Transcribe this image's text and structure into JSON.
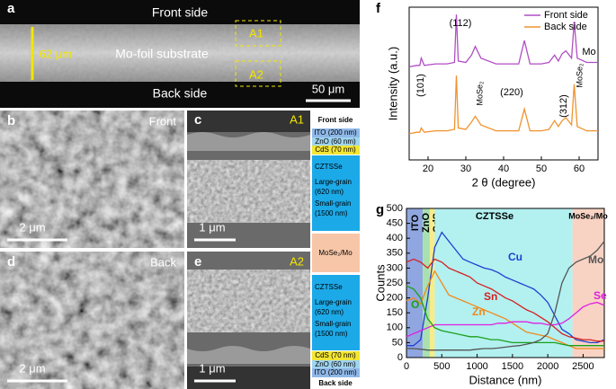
{
  "panels": {
    "a": {
      "label": "a",
      "front": "Front side",
      "substrate": "Mo-foil substrate",
      "back": "Back side",
      "thickness": "62 μm",
      "box1": "A1",
      "box2": "A2",
      "scale": "50 μm"
    },
    "b": {
      "label": "b",
      "side": "Front",
      "scale": "2 μm"
    },
    "c": {
      "label": "c",
      "box": "A1",
      "scale": "1 μm"
    },
    "d": {
      "label": "d",
      "side": "Back",
      "scale": "2 μm"
    },
    "e": {
      "label": "e",
      "box": "A2",
      "scale": "1 μm"
    },
    "stack": [
      "Front side",
      "ITO (200 nm)",
      "ZnO (60 nm)",
      "CdS (70 nm)",
      "CZTSSe",
      "Large-grain",
      "(620 nm)",
      "Small-grain",
      "(1500 nm)",
      "MoSe₂/Mo",
      "CZTSSe",
      "Large-grain",
      "(620 nm)",
      "Small-grain",
      "(1500 nm)",
      "CdS (70 nm)",
      "ZnO (60 nm)",
      "ITO (200 nm)",
      "Back side"
    ]
  },
  "chart_data": [
    {
      "type": "line",
      "panel": "f",
      "xlabel": "2 θ (degree)",
      "ylabel": "Intensity (a.u.)",
      "xlim": [
        15,
        65
      ],
      "xticks": [
        20,
        30,
        40,
        50,
        60
      ],
      "ylim": [
        0,
        105
      ],
      "legend": "upper right",
      "x": [
        15,
        17,
        17.8,
        18.2,
        19,
        22,
        25,
        27,
        27.5,
        28,
        30,
        31.5,
        32.5,
        34,
        38,
        44,
        45.5,
        47,
        50,
        52,
        53.5,
        54.5,
        55.5,
        56.5,
        58,
        58.7,
        59.5,
        62,
        65
      ],
      "series": [
        {
          "name": "Front side",
          "color": "#b04fc4",
          "values": [
            64,
            65,
            65,
            70,
            65,
            66,
            66,
            67,
            100,
            68,
            67,
            72,
            78,
            70,
            66,
            66,
            82,
            66,
            66,
            67,
            72,
            68,
            73,
            75,
            70,
            95,
            70,
            67,
            67
          ]
        },
        {
          "name": "Back side",
          "color": "#f0932f",
          "values": [
            18,
            19,
            19,
            22,
            19,
            20,
            20,
            21,
            58,
            22,
            21,
            26,
            30,
            24,
            20,
            20,
            35,
            20,
            20,
            21,
            27,
            23,
            27,
            29,
            24,
            52,
            23,
            20,
            20
          ]
        }
      ],
      "annotations": [
        "(101)",
        "(112)",
        "MoSe₂",
        "(220)",
        "(312)",
        "MoSe₂",
        "Mo"
      ]
    },
    {
      "type": "line",
      "panel": "g",
      "xlabel": "Distance (nm)",
      "ylabel": "Counts",
      "xlim": [
        0,
        2800
      ],
      "xticks": [
        0,
        500,
        1000,
        1500,
        2000,
        2500
      ],
      "ylim": [
        0,
        500
      ],
      "yticks": [
        0,
        50,
        100,
        150,
        200,
        250,
        300,
        350,
        400,
        450,
        500
      ],
      "regions": [
        {
          "label": "ITO",
          "span": [
            0,
            230
          ],
          "color": "#8fa6e0"
        },
        {
          "label": "ZnO",
          "span": [
            230,
            330
          ],
          "color": "#a8e0b0"
        },
        {
          "label": "CdS",
          "span": [
            330,
            400
          ],
          "color": "#f5ec8a"
        },
        {
          "label": "CZTSSe",
          "span": [
            400,
            2350
          ],
          "color": "#b3f0f0"
        },
        {
          "label": "MoSe₂/Mo",
          "span": [
            2350,
            2800
          ],
          "color": "#f8d3c4"
        }
      ],
      "x": [
        0,
        100,
        200,
        300,
        400,
        500,
        600,
        700,
        800,
        900,
        1000,
        1100,
        1200,
        1300,
        1400,
        1500,
        1600,
        1700,
        1800,
        1900,
        2000,
        2100,
        2200,
        2300,
        2400,
        2500,
        2600,
        2700,
        2800
      ],
      "series": [
        {
          "name": "Cu",
          "color": "#1f3fd0",
          "values": [
            40,
            40,
            60,
            200,
            370,
            420,
            390,
            360,
            330,
            320,
            310,
            300,
            295,
            285,
            270,
            260,
            250,
            240,
            230,
            210,
            185,
            140,
            95,
            80,
            60,
            55,
            50,
            50,
            60
          ]
        },
        {
          "name": "Sn",
          "color": "#d62020",
          "values": [
            320,
            330,
            320,
            300,
            330,
            320,
            300,
            290,
            280,
            270,
            250,
            240,
            230,
            215,
            200,
            190,
            175,
            160,
            150,
            135,
            120,
            100,
            80,
            70,
            65,
            60,
            60,
            55,
            55
          ]
        },
        {
          "name": "Zn",
          "color": "#f08a1c",
          "values": [
            190,
            200,
            180,
            240,
            290,
            250,
            210,
            200,
            190,
            180,
            170,
            160,
            150,
            140,
            130,
            115,
            100,
            85,
            80,
            75,
            70,
            60,
            50,
            40,
            30,
            30,
            30,
            30,
            30
          ]
        },
        {
          "name": "Se",
          "color": "#e020e0",
          "values": [
            70,
            80,
            90,
            100,
            110,
            110,
            110,
            110,
            110,
            110,
            110,
            110,
            110,
            115,
            115,
            120,
            120,
            120,
            115,
            115,
            110,
            110,
            115,
            130,
            150,
            170,
            180,
            185,
            175
          ]
        },
        {
          "name": "O",
          "color": "#1aa01a",
          "values": [
            240,
            230,
            200,
            130,
            100,
            90,
            85,
            80,
            75,
            70,
            70,
            65,
            60,
            60,
            55,
            50,
            50,
            50,
            50,
            50,
            50,
            50,
            45,
            40,
            40,
            40,
            40,
            40,
            40
          ]
        },
        {
          "name": "Mo",
          "color": "#555555",
          "values": [
            30,
            30,
            28,
            25,
            25,
            25,
            25,
            25,
            25,
            25,
            28,
            30,
            30,
            32,
            35,
            38,
            40,
            45,
            50,
            60,
            80,
            150,
            250,
            300,
            320,
            330,
            340,
            360,
            390
          ]
        }
      ]
    }
  ]
}
